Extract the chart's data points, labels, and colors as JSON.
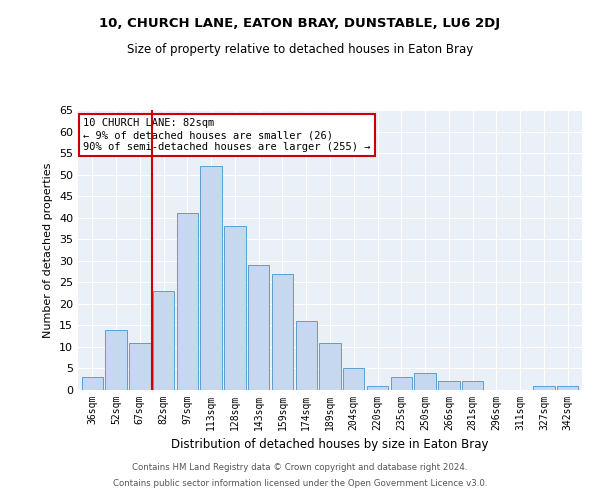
{
  "title1": "10, CHURCH LANE, EATON BRAY, DUNSTABLE, LU6 2DJ",
  "title2": "Size of property relative to detached houses in Eaton Bray",
  "xlabel": "Distribution of detached houses by size in Eaton Bray",
  "ylabel": "Number of detached properties",
  "categories": [
    "36sqm",
    "52sqm",
    "67sqm",
    "82sqm",
    "97sqm",
    "113sqm",
    "128sqm",
    "143sqm",
    "159sqm",
    "174sqm",
    "189sqm",
    "204sqm",
    "220sqm",
    "235sqm",
    "250sqm",
    "266sqm",
    "281sqm",
    "296sqm",
    "311sqm",
    "327sqm",
    "342sqm"
  ],
  "values": [
    3,
    14,
    11,
    23,
    41,
    52,
    38,
    29,
    27,
    16,
    11,
    5,
    1,
    3,
    4,
    2,
    2,
    0,
    0,
    1,
    1
  ],
  "bar_color": "#c5d8f0",
  "bar_edgecolor": "#5a9fd4",
  "vline_color": "#cc0000",
  "vline_x_index": 3,
  "annotation_text": "10 CHURCH LANE: 82sqm\n← 9% of detached houses are smaller (26)\n90% of semi-detached houses are larger (255) →",
  "ylim": [
    0,
    65
  ],
  "yticks": [
    0,
    5,
    10,
    15,
    20,
    25,
    30,
    35,
    40,
    45,
    50,
    55,
    60,
    65
  ],
  "bg_color": "#eaf0f8",
  "grid_color": "#ffffff",
  "footer1": "Contains HM Land Registry data © Crown copyright and database right 2024.",
  "footer2": "Contains public sector information licensed under the Open Government Licence v3.0."
}
